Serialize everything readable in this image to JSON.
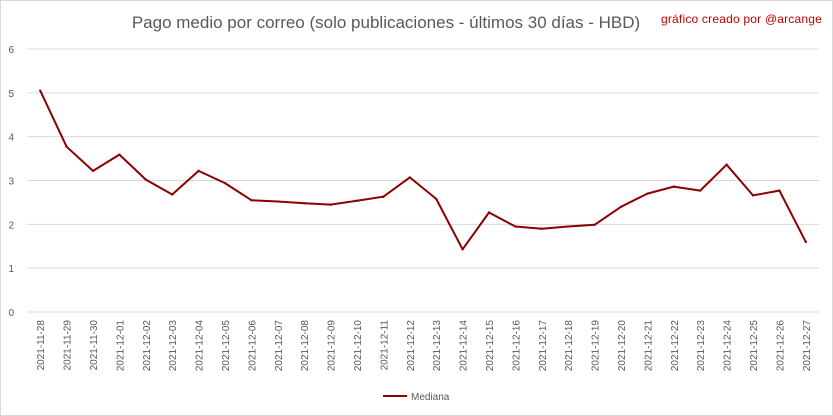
{
  "chart_data": {
    "type": "line",
    "title": "Pago medio por correo (solo publicaciones - últimos 30 días - HBD)",
    "credit": "gráfico creado por @arcange",
    "xlabel": "",
    "ylabel": "",
    "ylim": [
      0,
      6
    ],
    "yticks": [
      "0",
      "1",
      "2",
      "3",
      "4",
      "5",
      "6"
    ],
    "grid": true,
    "legend_position": "bottom",
    "categories": [
      "2021-11-28",
      "2021-11-29",
      "2021-11-30",
      "2021-12-01",
      "2021-12-02",
      "2021-12-03",
      "2021-12-04",
      "2021-12-05",
      "2021-12-06",
      "2021-12-07",
      "2021-12-08",
      "2021-12-09",
      "2021-12-10",
      "2021-12-11",
      "2021-12-12",
      "2021-12-13",
      "2021-12-14",
      "2021-12-15",
      "2021-12-16",
      "2021-12-17",
      "2021-12-18",
      "2021-12-19",
      "2021-12-20",
      "2021-12-21",
      "2021-12-22",
      "2021-12-23",
      "2021-12-24",
      "2021-12-25",
      "2021-12-26",
      "2021-12-27"
    ],
    "series": [
      {
        "name": "Mediana",
        "color": "#8b0000",
        "values": [
          5.05,
          3.77,
          3.22,
          3.59,
          3.02,
          2.68,
          3.22,
          2.94,
          2.55,
          2.52,
          2.48,
          2.45,
          2.54,
          2.63,
          3.07,
          2.58,
          1.43,
          2.27,
          1.95,
          1.9,
          1.95,
          1.99,
          2.4,
          2.7,
          2.86,
          2.77,
          3.36,
          2.66,
          2.77,
          1.6
        ]
      }
    ]
  },
  "colors": {
    "grid": "#d9d9d9",
    "axis_text": "#595959",
    "credit": "#c00000"
  }
}
